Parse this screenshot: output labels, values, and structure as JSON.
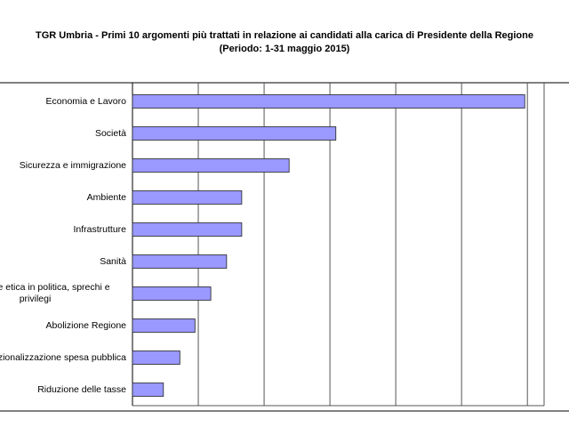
{
  "chart_data": {
    "type": "hbar",
    "title": "TGR Umbria - Primi 10 argomenti più trattati in relazione ai candidati alla carica di Presidente della Regione",
    "subtitle": "(Periodo: 1-31 maggio 2015)",
    "categories": [
      "Economia e Lavoro",
      "Società",
      "Sicurezza e immigrazione",
      "Ambiente",
      "Infrastrutture",
      "Sanità",
      "Questione etica in politica, sprechi e privilegi",
      "Abolizione Regione",
      "Razionalizzazione spesa pubblica",
      "Riduzione delle tasse"
    ],
    "values": [
      5.96,
      3.09,
      2.38,
      1.66,
      1.66,
      1.43,
      1.19,
      0.95,
      0.72,
      0.47
    ],
    "color": "#9999ff",
    "xlim": [
      0,
      6.2
    ],
    "xticks": [
      0,
      1,
      2,
      3,
      4,
      5,
      6
    ],
    "grid": true
  }
}
